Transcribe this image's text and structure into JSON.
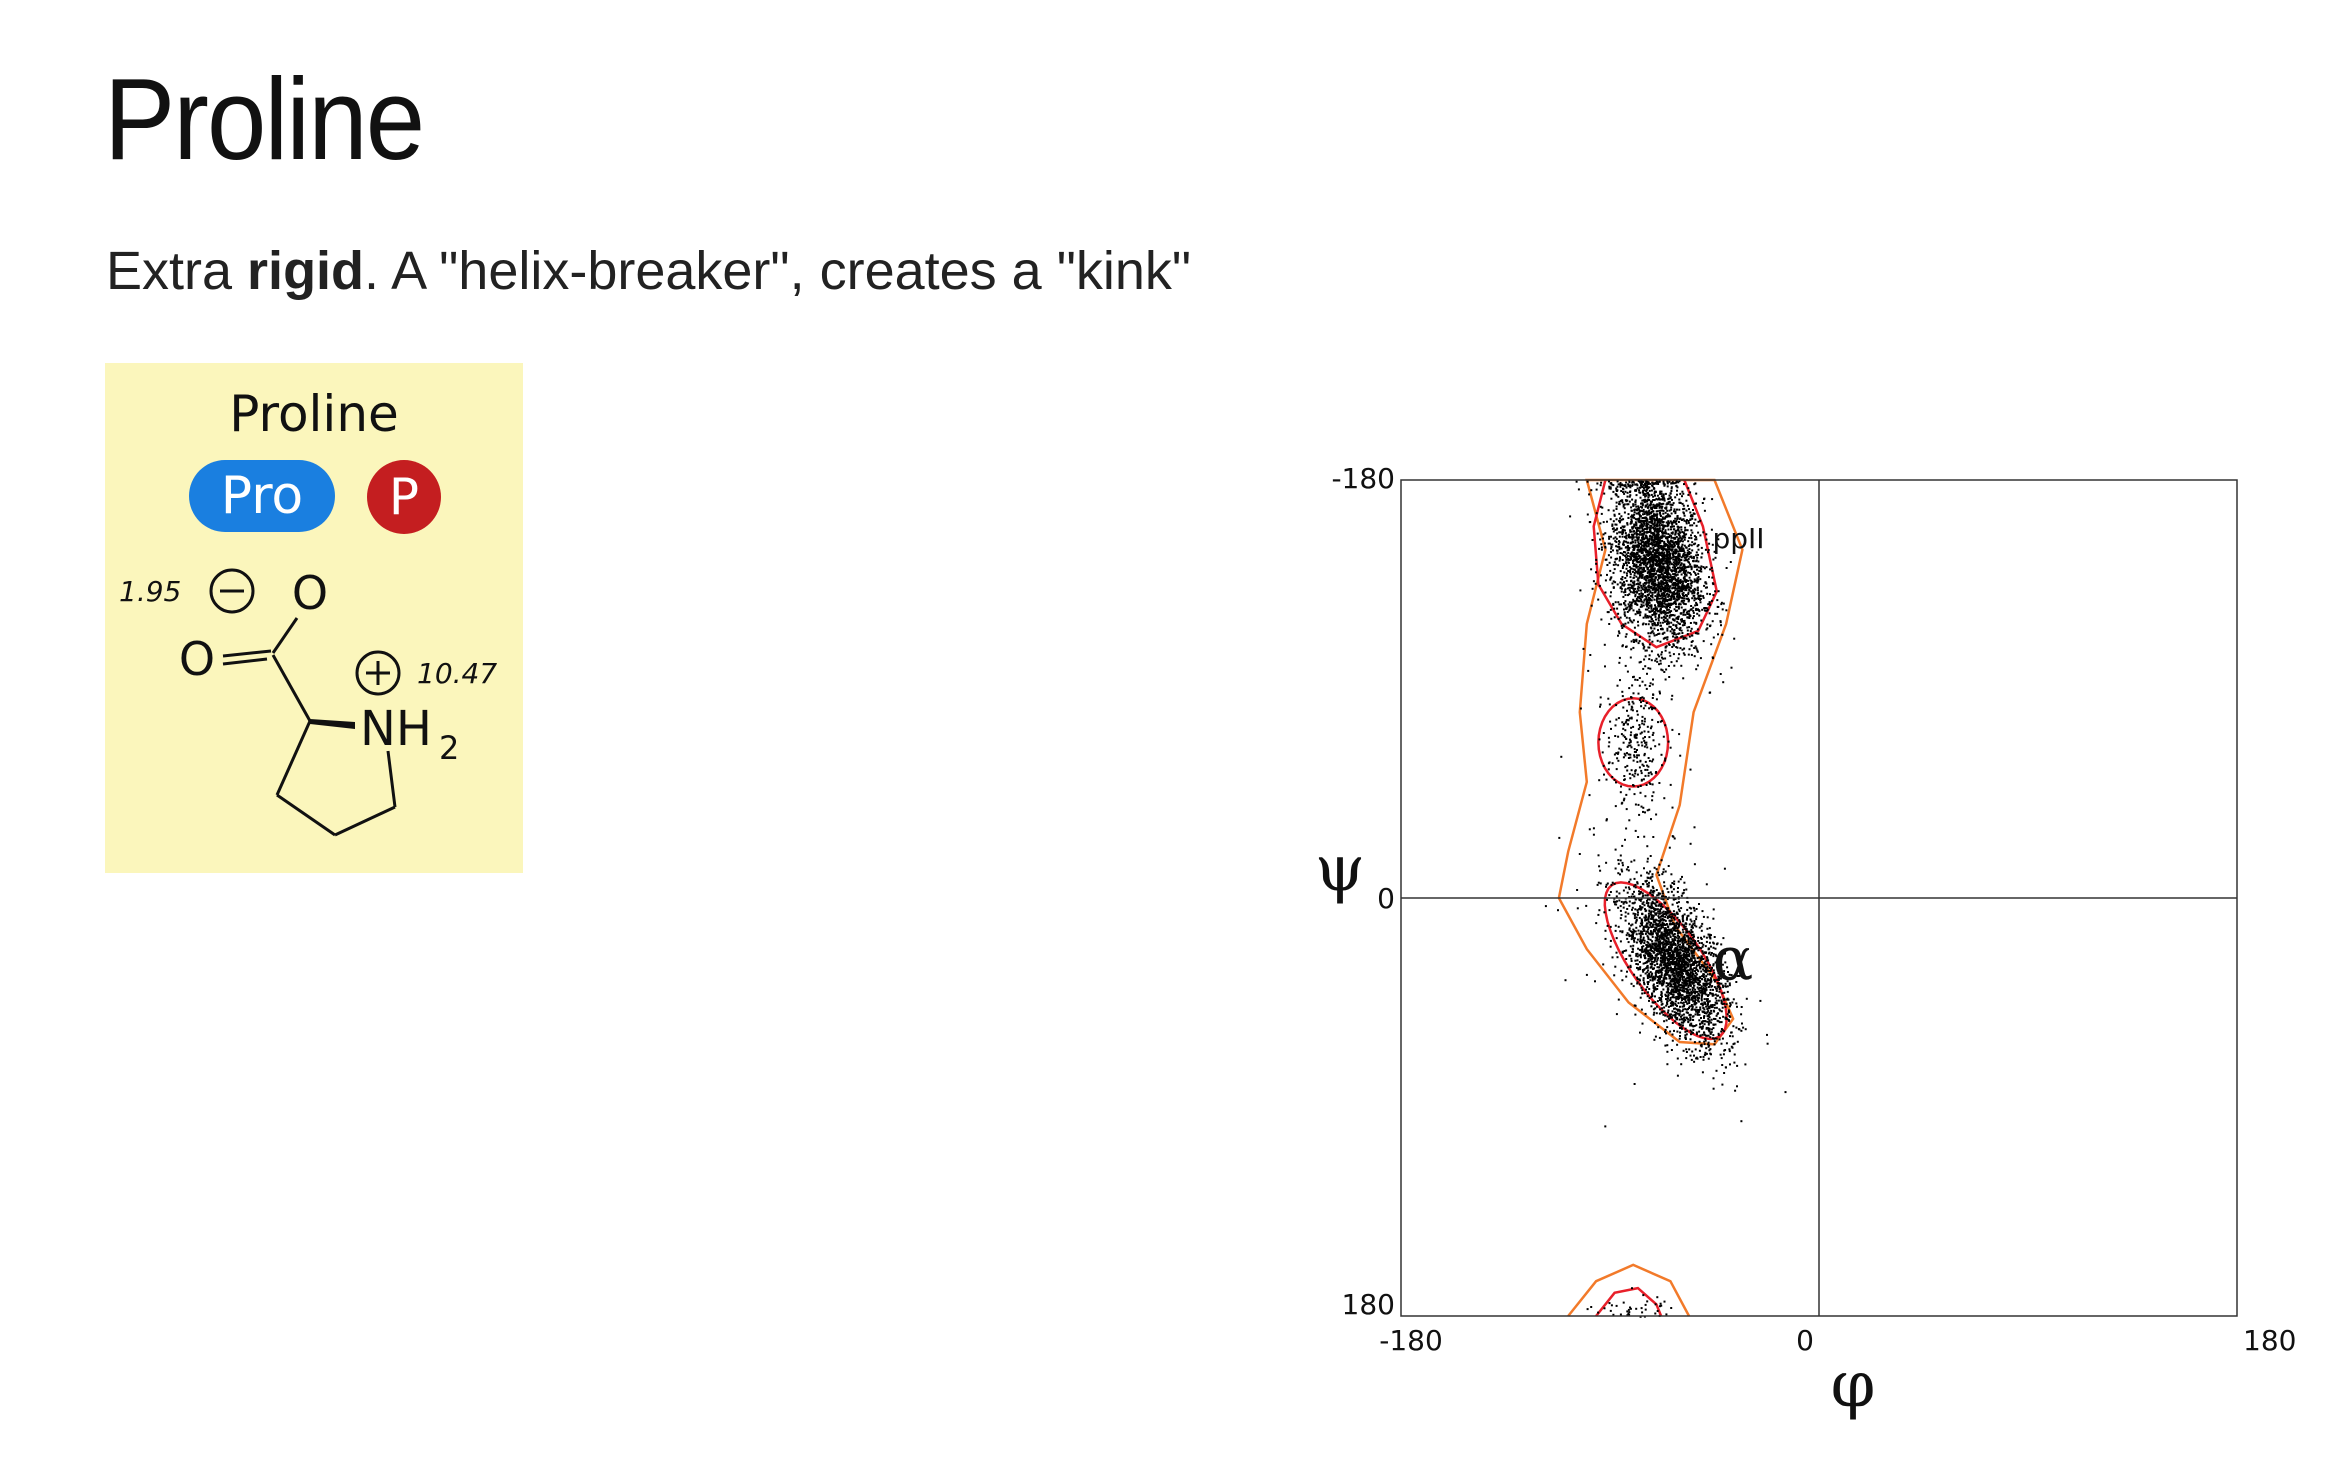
{
  "slide": {
    "title": "Proline",
    "subtitle_plain_start": "Extra ",
    "subtitle_bold": "rigid",
    "subtitle_plain_end": ". A \"helix-breaker\", creates a \"kink\""
  },
  "amino_acid_card": {
    "name": "Proline",
    "three_letter_code": "Pro",
    "one_letter_code": "P",
    "carboxyl_pka": "1.95",
    "amine_pka": "10.47",
    "atom_o1": "O",
    "atom_o2": "O",
    "atom_n": "NH",
    "subscript_2": "2",
    "minus_sign": "−",
    "plus_sign": "+",
    "colors": {
      "background": "#fbf6bc",
      "three_letter_pill": "#1a7fe0",
      "one_letter_pill": "#c41e20"
    }
  },
  "ramachandran": {
    "x_symbol": "φ",
    "y_symbol": "ψ",
    "x_ticks": [
      "-180",
      "0",
      "180"
    ],
    "y_ticks": [
      "180",
      "0",
      "-180"
    ],
    "region_labels": [
      "ppII",
      "α"
    ],
    "colors": {
      "inner_contour": "#e8202a",
      "outer_contour": "#f27a2a",
      "points": "#000000"
    }
  },
  "chart_data": {
    "type": "scatter",
    "title": "",
    "xlabel": "φ",
    "ylabel": "ψ",
    "xlim": [
      -180,
      180
    ],
    "ylim": [
      -180,
      180
    ],
    "x_ticks": [
      -180,
      0,
      180
    ],
    "y_ticks": [
      -180,
      0,
      180
    ],
    "grid": false,
    "reference_lines": {
      "x": 0,
      "y": 0
    },
    "annotations": [
      {
        "text": "ppII",
        "x": -45,
        "y": 155
      },
      {
        "text": "α",
        "x": -38,
        "y": -30
      }
    ],
    "clusters": [
      {
        "region": "ppII",
        "center": [
          -70,
          145
        ],
        "spread": [
          10,
          18
        ],
        "count": 3200
      },
      {
        "region": "α",
        "center": [
          -62,
          -28
        ],
        "spread": [
          11,
          14
        ],
        "count": 2800
      },
      {
        "region": "bridge",
        "center": [
          -80,
          68
        ],
        "spread": [
          6,
          14
        ],
        "count": 260
      },
      {
        "region": "sparse",
        "center": [
          -80,
          30
        ],
        "spread": [
          14,
          50
        ],
        "count": 120
      },
      {
        "region": "wrap",
        "center": [
          -80,
          -174
        ],
        "spread": [
          8,
          5
        ],
        "count": 40
      }
    ]
  }
}
